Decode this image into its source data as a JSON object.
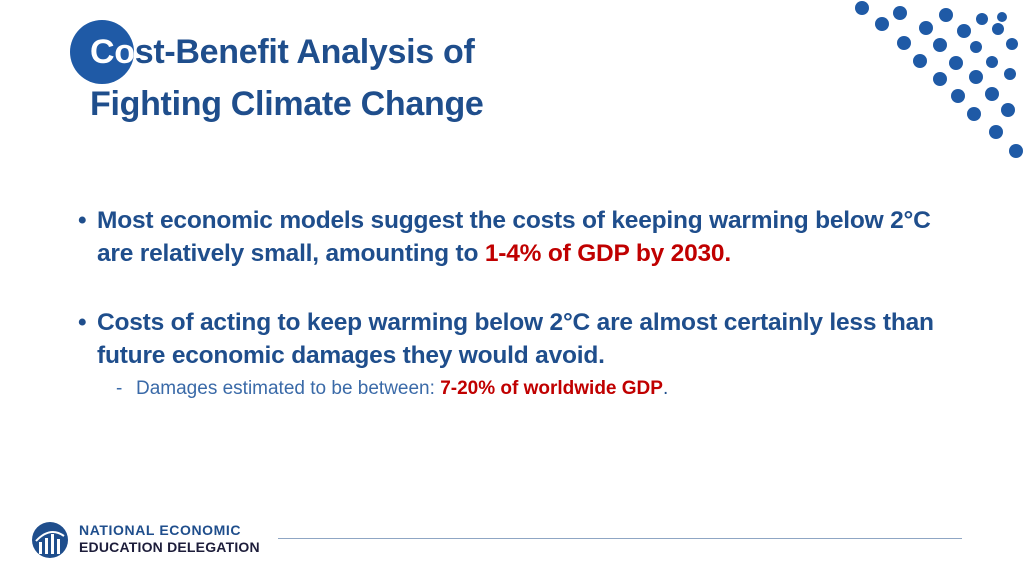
{
  "title": {
    "highlight": "Co",
    "line1_rest": "st-Benefit Analysis of",
    "line2": "Fighting Climate Change"
  },
  "bullets": [
    {
      "text": "Most economic models suggest the costs of keeping warming below 2°C are relatively small, amounting to ",
      "highlight": "1-4% of GDP by 2030.",
      "after": ""
    },
    {
      "text": "Costs of acting to keep warming below 2°C are almost certainly less than future economic damages they would avoid.",
      "highlight": "",
      "after": ""
    }
  ],
  "sub_bullet": {
    "dash": "-",
    "text": "Damages estimated to be between: ",
    "highlight": "7-20% of worldwide GDP",
    "after": "."
  },
  "bullet_symbol": "•",
  "footer": {
    "org_line1": "NATIONAL ECONOMIC",
    "org_line2": "EDUCATION DELEGATION"
  },
  "colors": {
    "primary_blue": "#1f4e8c",
    "accent_blue": "#1f5aa6",
    "highlight_red": "#c00000"
  }
}
